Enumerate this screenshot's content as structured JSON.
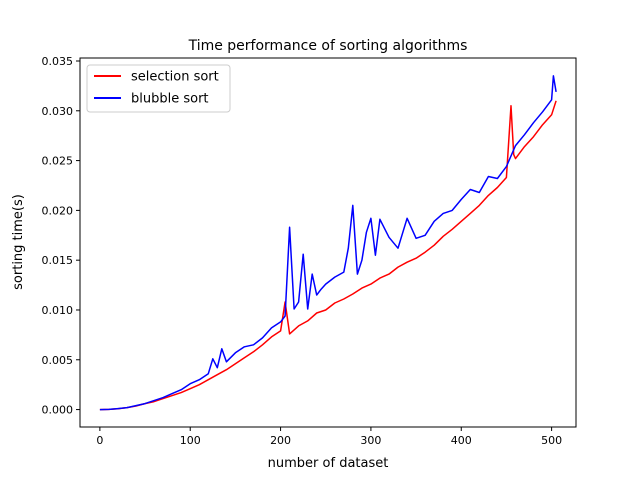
{
  "chart_data": {
    "type": "line",
    "title": "Time performance of sorting algorithms",
    "xlabel": "number of dataset",
    "ylabel": "sorting time(s)",
    "xlim": [
      -22,
      527
    ],
    "ylim": [
      -0.00175,
      0.0353
    ],
    "xticks": [
      0,
      100,
      200,
      300,
      400,
      500
    ],
    "xtick_labels": [
      "0",
      "100",
      "200",
      "300",
      "400",
      "500"
    ],
    "yticks": [
      0,
      0.005,
      0.01,
      0.015,
      0.02,
      0.025,
      0.03,
      0.035
    ],
    "ytick_labels": [
      "0.000",
      "0.005",
      "0.010",
      "0.015",
      "0.020",
      "0.025",
      "0.030",
      "0.035"
    ],
    "grid": false,
    "legend_position": "upper-left",
    "series": [
      {
        "name": "selection sort",
        "color": "#ff0000",
        "x": [
          0,
          10,
          20,
          30,
          40,
          50,
          60,
          70,
          80,
          90,
          100,
          110,
          120,
          130,
          140,
          150,
          160,
          170,
          180,
          190,
          200,
          205,
          210,
          220,
          230,
          240,
          250,
          260,
          270,
          280,
          290,
          300,
          310,
          320,
          330,
          340,
          350,
          360,
          370,
          380,
          390,
          400,
          410,
          420,
          430,
          440,
          450,
          455,
          458,
          460,
          470,
          480,
          490,
          500,
          505
        ],
        "y": [
          0.0,
          2e-05,
          8e-05,
          0.0002,
          0.00036,
          0.0006,
          0.0008,
          0.0011,
          0.0014,
          0.0017,
          0.0021,
          0.0025,
          0.003,
          0.0035,
          0.004,
          0.0046,
          0.0052,
          0.0058,
          0.0065,
          0.0073,
          0.0079,
          0.0108,
          0.0076,
          0.0084,
          0.0089,
          0.0097,
          0.01,
          0.0107,
          0.0111,
          0.0116,
          0.0122,
          0.0126,
          0.0132,
          0.0136,
          0.0143,
          0.0148,
          0.0152,
          0.0158,
          0.0165,
          0.0174,
          0.0181,
          0.0189,
          0.0197,
          0.0205,
          0.0215,
          0.0223,
          0.0233,
          0.0305,
          0.0256,
          0.0252,
          0.0264,
          0.0274,
          0.0286,
          0.0296,
          0.031
        ]
      },
      {
        "name": "blubble sort",
        "color": "#0000ff",
        "x": [
          0,
          10,
          20,
          30,
          40,
          50,
          60,
          70,
          80,
          90,
          100,
          110,
          120,
          125,
          130,
          135,
          140,
          150,
          160,
          170,
          180,
          190,
          200,
          205,
          210,
          215,
          220,
          225,
          230,
          235,
          240,
          245,
          250,
          260,
          270,
          275,
          280,
          285,
          290,
          295,
          300,
          305,
          310,
          320,
          330,
          340,
          350,
          360,
          370,
          380,
          390,
          400,
          410,
          420,
          430,
          440,
          450,
          460,
          470,
          480,
          490,
          500,
          502,
          505
        ],
        "y": [
          0.0,
          2e-05,
          0.0001,
          0.0002,
          0.0004,
          0.0006,
          0.0009,
          0.0012,
          0.0016,
          0.002,
          0.0026,
          0.003,
          0.0036,
          0.0051,
          0.0042,
          0.0061,
          0.0048,
          0.0057,
          0.0063,
          0.0065,
          0.0072,
          0.0082,
          0.0088,
          0.0094,
          0.0183,
          0.0101,
          0.0108,
          0.0156,
          0.0101,
          0.0136,
          0.0115,
          0.0121,
          0.0126,
          0.0133,
          0.0138,
          0.0162,
          0.0205,
          0.0136,
          0.015,
          0.0178,
          0.0192,
          0.0155,
          0.0191,
          0.0173,
          0.0162,
          0.0192,
          0.0172,
          0.0175,
          0.0189,
          0.0197,
          0.02,
          0.0211,
          0.0221,
          0.0218,
          0.0234,
          0.0232,
          0.0244,
          0.0265,
          0.0276,
          0.0288,
          0.0299,
          0.0311,
          0.0335,
          0.0319
        ]
      }
    ]
  }
}
